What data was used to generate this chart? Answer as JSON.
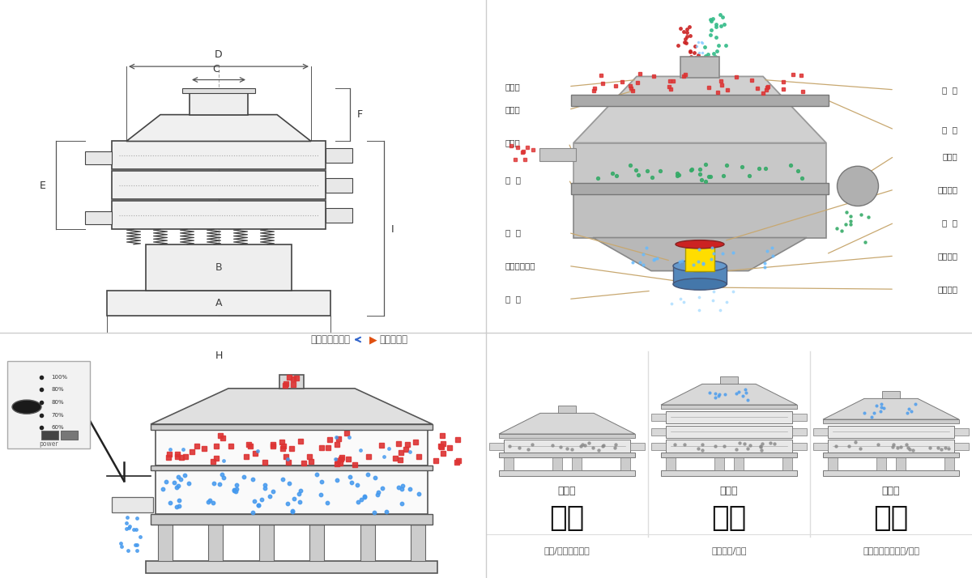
{
  "bg_color": "#ffffff",
  "nav_left": "外形尺寸示意图",
  "nav_right": "结构示意图",
  "left_labels": [
    "进料口",
    "防尘盖",
    "出料口",
    "束  环",
    "弹  簧",
    "运输固定螺栓",
    "机  座"
  ],
  "right_labels": [
    "筛  网",
    "网  架",
    "加重块",
    "上部重锤",
    "筛  盘",
    "振动电机",
    "下部重锤"
  ],
  "bottom_left_labels": [
    "分级",
    "颗粒/粉末准确分级"
  ],
  "bottom_mid_labels": [
    "过滤",
    "去除异物/结块"
  ],
  "bottom_right_labels": [
    "除杂",
    "去除液体中的颗粒/异物"
  ],
  "single_layer": "单层式",
  "three_layer": "三层式",
  "double_layer": "双层式",
  "power_label": "power",
  "power_pcts": [
    "100%",
    "80%",
    "80%",
    "70%",
    "60%"
  ],
  "dim_labels": [
    "A",
    "B",
    "C",
    "D",
    "E",
    "F",
    "H",
    "I"
  ],
  "border_color": "#cccccc",
  "line_color": "#444444",
  "dim_color": "#555555",
  "label_color_left": "#333333",
  "connector_color": "#c8a870",
  "particle_red": "#dd3333",
  "particle_blue": "#4499ee",
  "particle_green": "#33aa66",
  "particle_teal": "#44bbaa"
}
